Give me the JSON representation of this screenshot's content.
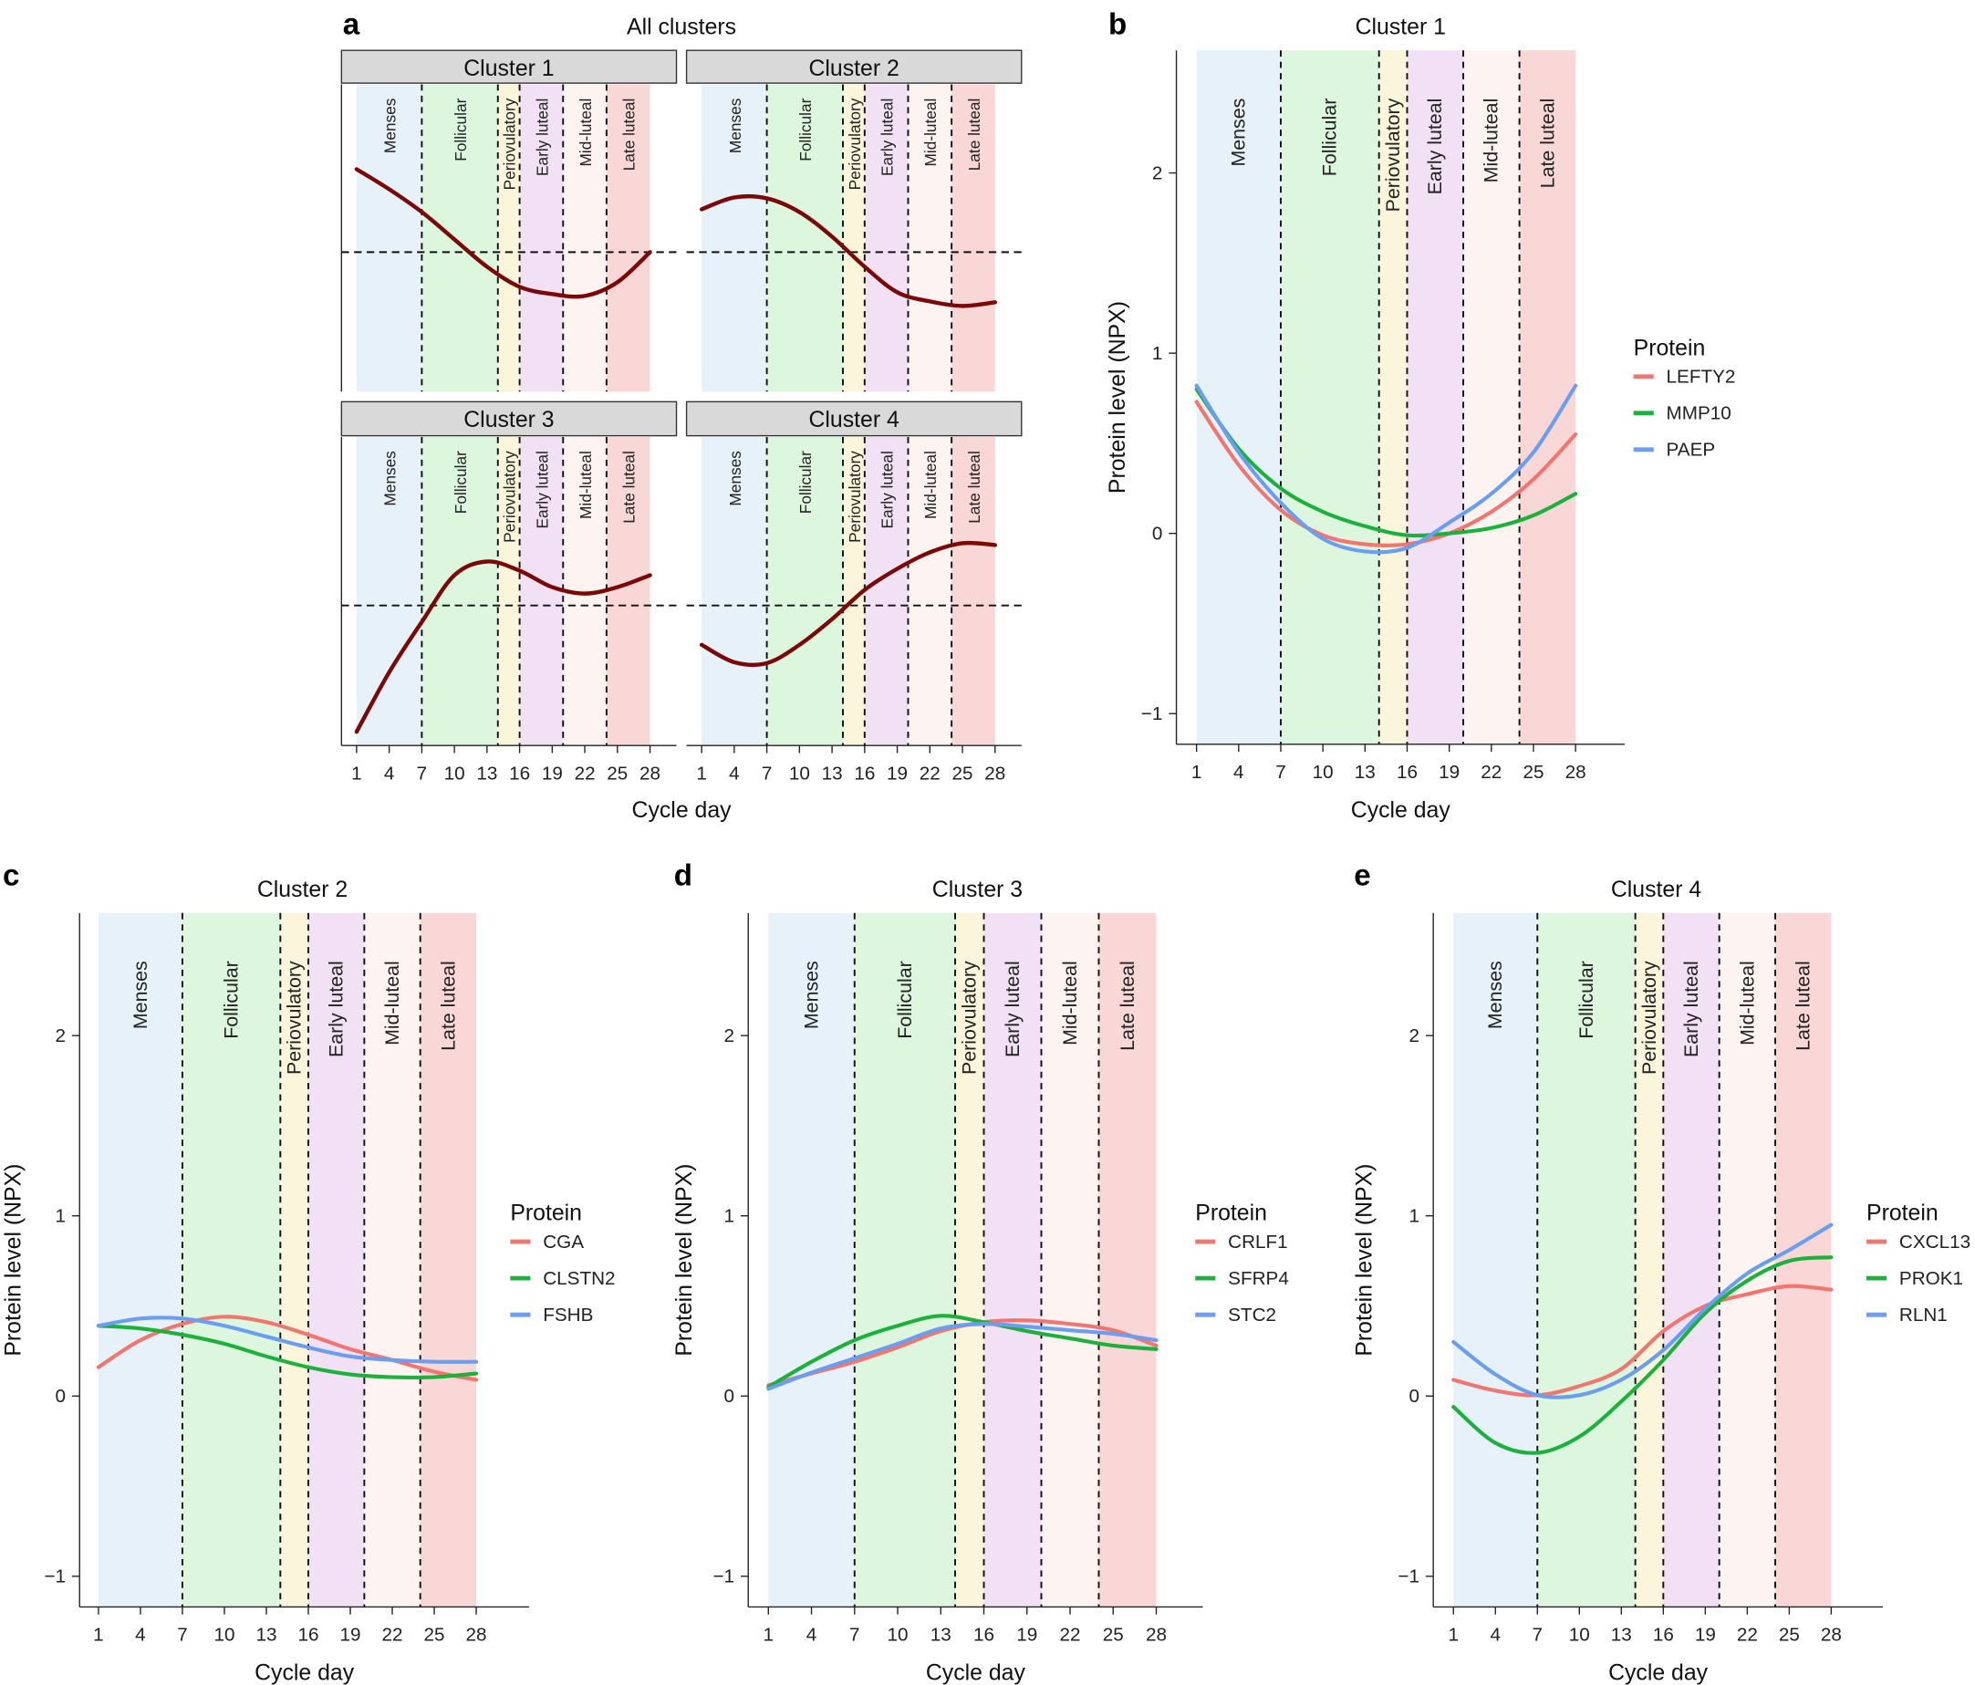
{
  "phases": [
    {
      "name": "Menses",
      "start": 1,
      "end": 7,
      "color": "#e6f1f9"
    },
    {
      "name": "Follicular",
      "start": 7,
      "end": 14,
      "color": "#ddf7de"
    },
    {
      "name": "Periovulatory",
      "start": 14,
      "end": 16,
      "color": "#fbf6db"
    },
    {
      "name": "Early luteal",
      "start": 16,
      "end": 20,
      "color": "#f2e0f4"
    },
    {
      "name": "Mid-luteal",
      "start": 20,
      "end": 24,
      "color": "#fdf4f2"
    },
    {
      "name": "Late luteal",
      "start": 24,
      "end": 28,
      "color": "#f9d7d6"
    }
  ],
  "chart_data": [
    {
      "panel_label": "a",
      "type": "line",
      "title": "All clusters",
      "xlabel": "Cycle day",
      "x_ticks": [
        1,
        4,
        7,
        10,
        13,
        16,
        19,
        22,
        25,
        28
      ],
      "xlim": [
        1,
        28
      ],
      "ylim": [
        -1.53,
        1.84
      ],
      "reference_line_y": 0,
      "line_color": "#7b0808",
      "x": [
        1,
        4,
        7,
        10,
        13,
        16,
        19,
        22,
        25,
        28
      ],
      "facets": [
        {
          "title": "Cluster 1",
          "y": [
            0.91,
            0.69,
            0.44,
            0.14,
            -0.16,
            -0.38,
            -0.46,
            -0.48,
            -0.33,
            0.0
          ]
        },
        {
          "title": "Cluster 2",
          "y": [
            0.47,
            0.6,
            0.59,
            0.44,
            0.17,
            -0.16,
            -0.44,
            -0.54,
            -0.59,
            -0.55
          ]
        },
        {
          "title": "Cluster 3",
          "y": [
            -1.38,
            -0.73,
            -0.18,
            0.33,
            0.48,
            0.38,
            0.2,
            0.13,
            0.2,
            0.33
          ]
        },
        {
          "title": "Cluster 4",
          "y": [
            -0.43,
            -0.62,
            -0.63,
            -0.43,
            -0.15,
            0.17,
            0.4,
            0.58,
            0.68,
            0.66
          ]
        }
      ]
    },
    {
      "panel_label": "b",
      "type": "line",
      "title": "Cluster 1",
      "xlabel": "Cycle day",
      "ylabel": "Protein level (NPX)",
      "x_ticks": [
        1,
        4,
        7,
        10,
        13,
        16,
        19,
        22,
        25,
        28
      ],
      "y_ticks": [
        -1,
        0,
        1,
        2
      ],
      "y_tick_labels": [
        "−1",
        "0",
        "1",
        "2"
      ],
      "xlim": [
        1,
        28
      ],
      "ylim": [
        -1.17,
        2.68
      ],
      "legend_title": "Protein",
      "legend_position": "right",
      "x": [
        1,
        4,
        7,
        10,
        13,
        16,
        19,
        22,
        25,
        28
      ],
      "series": [
        {
          "name": "LEFTY2",
          "color": "#f0766f",
          "y": [
            0.73,
            0.38,
            0.13,
            -0.01,
            -0.06,
            -0.06,
            0.0,
            0.12,
            0.3,
            0.55
          ]
        },
        {
          "name": "MMP10",
          "color": "#1cb03c",
          "y": [
            0.8,
            0.47,
            0.25,
            0.12,
            0.04,
            -0.01,
            0.0,
            0.03,
            0.1,
            0.22
          ]
        },
        {
          "name": "PAEP",
          "color": "#6b9ef0",
          "y": [
            0.82,
            0.45,
            0.17,
            -0.03,
            -0.1,
            -0.08,
            0.06,
            0.22,
            0.45,
            0.82
          ]
        }
      ]
    },
    {
      "panel_label": "c",
      "type": "line",
      "title": "Cluster 2",
      "xlabel": "Cycle day",
      "ylabel": "Protein level (NPX)",
      "x_ticks": [
        1,
        4,
        7,
        10,
        13,
        16,
        19,
        22,
        25,
        28
      ],
      "y_ticks": [
        -1,
        0,
        1,
        2
      ],
      "y_tick_labels": [
        "−1",
        "0",
        "1",
        "2"
      ],
      "xlim": [
        1,
        28
      ],
      "ylim": [
        -1.17,
        2.68
      ],
      "legend_title": "Protein",
      "legend_position": "right",
      "x": [
        1,
        4,
        7,
        10,
        13,
        16,
        19,
        22,
        25,
        28
      ],
      "series": [
        {
          "name": "CGA",
          "color": "#f0766f",
          "y": [
            0.16,
            0.31,
            0.4,
            0.44,
            0.41,
            0.34,
            0.26,
            0.2,
            0.135,
            0.09
          ]
        },
        {
          "name": "CLSTN2",
          "color": "#1cb03c",
          "y": [
            0.39,
            0.375,
            0.34,
            0.29,
            0.22,
            0.16,
            0.12,
            0.105,
            0.105,
            0.125
          ]
        },
        {
          "name": "FSHB",
          "color": "#6b9ef0",
          "y": [
            0.39,
            0.43,
            0.43,
            0.39,
            0.33,
            0.27,
            0.22,
            0.2,
            0.19,
            0.19
          ]
        }
      ]
    },
    {
      "panel_label": "d",
      "type": "line",
      "title": "Cluster 3",
      "xlabel": "Cycle day",
      "ylabel": "Protein level (NPX)",
      "x_ticks": [
        1,
        4,
        7,
        10,
        13,
        16,
        19,
        22,
        25,
        28
      ],
      "y_ticks": [
        -1,
        0,
        1,
        2
      ],
      "y_tick_labels": [
        "−1",
        "0",
        "1",
        "2"
      ],
      "xlim": [
        1,
        28
      ],
      "ylim": [
        -1.17,
        2.68
      ],
      "legend_title": "Protein",
      "legend_position": "right",
      "x": [
        1,
        4,
        7,
        10,
        13,
        16,
        19,
        22,
        25,
        28
      ],
      "series": [
        {
          "name": "CRLF1",
          "color": "#f0766f",
          "y": [
            0.06,
            0.125,
            0.19,
            0.27,
            0.36,
            0.41,
            0.42,
            0.4,
            0.365,
            0.28
          ]
        },
        {
          "name": "SFRP4",
          "color": "#1cb03c",
          "y": [
            0.05,
            0.19,
            0.31,
            0.39,
            0.445,
            0.41,
            0.36,
            0.32,
            0.28,
            0.26
          ]
        },
        {
          "name": "STC2",
          "color": "#6b9ef0",
          "y": [
            0.04,
            0.13,
            0.21,
            0.29,
            0.375,
            0.4,
            0.385,
            0.365,
            0.345,
            0.31
          ]
        }
      ]
    },
    {
      "panel_label": "e",
      "type": "line",
      "title": "Cluster 4",
      "xlabel": "Cycle day",
      "ylabel": "Protein level (NPX)",
      "x_ticks": [
        1,
        4,
        7,
        10,
        13,
        16,
        19,
        22,
        25,
        28
      ],
      "y_ticks": [
        -1,
        0,
        1,
        2
      ],
      "y_tick_labels": [
        "−1",
        "0",
        "1",
        "2"
      ],
      "xlim": [
        1,
        28
      ],
      "ylim": [
        -1.17,
        2.68
      ],
      "legend_title": "Protein",
      "legend_position": "right",
      "x": [
        1,
        4,
        7,
        10,
        13,
        16,
        19,
        22,
        25,
        28
      ],
      "series": [
        {
          "name": "CXCL13",
          "color": "#f0766f",
          "y": [
            0.09,
            0.03,
            0.005,
            0.055,
            0.15,
            0.36,
            0.5,
            0.565,
            0.61,
            0.59
          ]
        },
        {
          "name": "PROK1",
          "color": "#1cb03c",
          "y": [
            -0.06,
            -0.26,
            -0.315,
            -0.225,
            -0.03,
            0.2,
            0.46,
            0.64,
            0.75,
            0.77
          ]
        },
        {
          "name": "RLN1",
          "color": "#6b9ef0",
          "y": [
            0.3,
            0.12,
            0.005,
            0.005,
            0.09,
            0.255,
            0.485,
            0.68,
            0.81,
            0.95
          ]
        }
      ]
    }
  ]
}
